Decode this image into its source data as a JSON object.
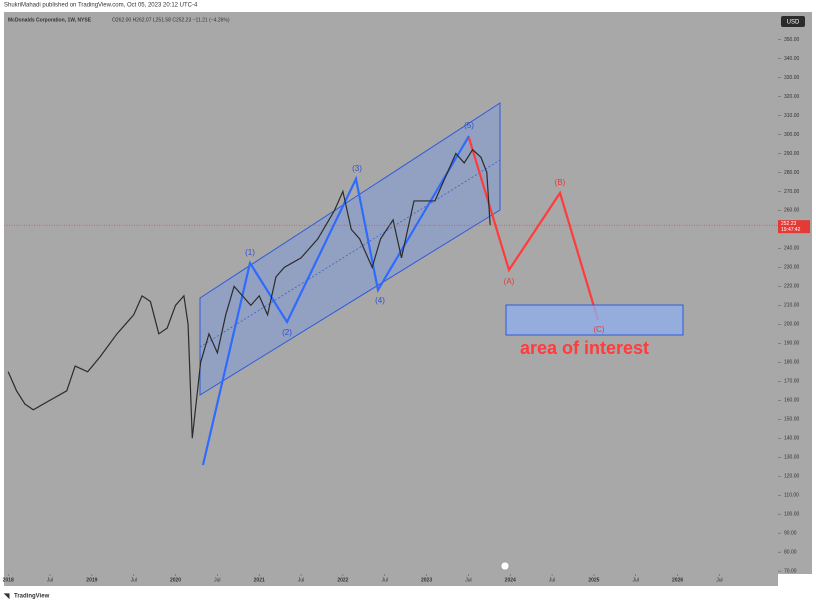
{
  "header": {
    "publisher": "ShukriMahadi published on TradingView.com, Oct 05, 2023 20:12 UTC-4",
    "symbol": "McDonalds Corporation, 1W, NYSE",
    "ohlc": "O262.00 H262.07 L251.58 C252.23 −11.21 (−4.26%)",
    "currency": "USD",
    "footer": "TradingView"
  },
  "chart_data": {
    "type": "line",
    "color": "#2b2b2b",
    "x": [
      2018.0,
      2018.1,
      2018.2,
      2018.3,
      2018.5,
      2018.7,
      2018.8,
      2018.95,
      2019.1,
      2019.3,
      2019.5,
      2019.6,
      2019.7,
      2019.8,
      2019.9,
      2020.0,
      2020.1,
      2020.15,
      2020.2,
      2020.3,
      2020.4,
      2020.5,
      2020.6,
      2020.7,
      2020.8,
      2020.9,
      2021.0,
      2021.1,
      2021.2,
      2021.3,
      2021.5,
      2021.6,
      2021.7,
      2021.9,
      2022.0,
      2022.1,
      2022.2,
      2022.35,
      2022.45,
      2022.6,
      2022.7,
      2022.75,
      2022.85,
      2022.95,
      2023.1,
      2023.2,
      2023.35,
      2023.45,
      2023.55,
      2023.65,
      2023.72,
      2023.76
    ],
    "values": [
      175,
      165,
      158,
      155,
      160,
      165,
      178,
      175,
      183,
      195,
      205,
      215,
      212,
      195,
      198,
      210,
      215,
      200,
      140,
      180,
      195,
      185,
      205,
      220,
      215,
      210,
      215,
      205,
      225,
      230,
      235,
      240,
      245,
      260,
      270,
      250,
      245,
      230,
      245,
      255,
      235,
      245,
      265,
      265,
      265,
      275,
      290,
      285,
      292,
      288,
      280,
      252.23
    ],
    "last_price": {
      "value": 252.23,
      "label": "252.23"
    },
    "countdown": "19:47:42",
    "xlim": [
      2017.95,
      2027.2
    ],
    "ylim": [
      68.5,
      364.5
    ],
    "xticks": [
      {
        "value": 2018,
        "label": "2018"
      },
      {
        "value": 2018.5,
        "label": "Jul"
      },
      {
        "value": 2019,
        "label": "2019"
      },
      {
        "value": 2019.5,
        "label": "Jul"
      },
      {
        "value": 2020,
        "label": "2020"
      },
      {
        "value": 2020.5,
        "label": "Jul"
      },
      {
        "value": 2021,
        "label": "2021"
      },
      {
        "value": 2021.5,
        "label": "Jul"
      },
      {
        "value": 2022,
        "label": "2022"
      },
      {
        "value": 2022.5,
        "label": "Jul"
      },
      {
        "value": 2023,
        "label": "2023"
      },
      {
        "value": 2023.5,
        "label": "Jul"
      },
      {
        "value": 2024,
        "label": "2024"
      },
      {
        "value": 2024.5,
        "label": "Jul"
      },
      {
        "value": 2025,
        "label": "2025"
      },
      {
        "value": 2025.5,
        "label": "Jul"
      },
      {
        "value": 2026,
        "label": "2026"
      },
      {
        "value": 2026.5,
        "label": "Jul"
      }
    ],
    "yticks": [
      {
        "value": 70,
        "label": "70.00"
      },
      {
        "value": 80,
        "label": "80.00"
      },
      {
        "value": 90,
        "label": "90.00"
      },
      {
        "value": 100,
        "label": "100.00"
      },
      {
        "value": 110,
        "label": "110.00"
      },
      {
        "value": 120,
        "label": "120.00"
      },
      {
        "value": 130,
        "label": "130.00"
      },
      {
        "value": 140,
        "label": "140.00"
      },
      {
        "value": 150,
        "label": "150.00"
      },
      {
        "value": 160,
        "label": "160.00"
      },
      {
        "value": 170,
        "label": "170.00"
      },
      {
        "value": 180,
        "label": "180.00"
      },
      {
        "value": 190,
        "label": "190.00"
      },
      {
        "value": 200,
        "label": "200.00"
      },
      {
        "value": 210,
        "label": "210.00"
      },
      {
        "value": 220,
        "label": "220.00"
      },
      {
        "value": 230,
        "label": "230.00"
      },
      {
        "value": 240,
        "label": "240.00"
      },
      {
        "value": 250,
        "label": "250.00"
      },
      {
        "value": 260,
        "label": "260.00"
      },
      {
        "value": 270,
        "label": "270.00"
      },
      {
        "value": 280,
        "label": "280.00"
      },
      {
        "value": 290,
        "label": "290.00"
      },
      {
        "value": 300,
        "label": "300.00"
      },
      {
        "value": 310,
        "label": "310.00"
      },
      {
        "value": 320,
        "label": "320.00"
      },
      {
        "value": 330,
        "label": "330.00"
      },
      {
        "value": 340,
        "label": "340.00"
      },
      {
        "value": 350,
        "label": "350.00"
      }
    ],
    "annotations": {
      "waves": [
        "(1)",
        "(2)",
        "(3)",
        "(4)",
        "(5)"
      ],
      "projection": [
        "(A)",
        "(B)",
        "(C)"
      ],
      "zone": "area of interest"
    }
  }
}
